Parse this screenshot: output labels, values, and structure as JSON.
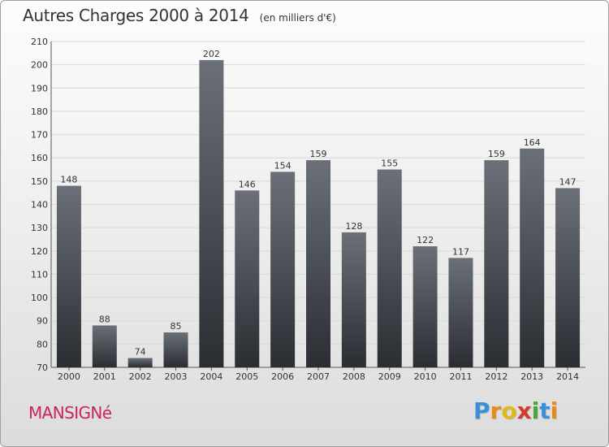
{
  "header": {
    "title": "Autres Charges 2000 à 2014",
    "subtitle": "(en milliers d'€)"
  },
  "footer": {
    "commune": "MANSIGNé",
    "brand": "Proxiti",
    "brand_letters": [
      {
        "ch": "P",
        "color": "#3a8fd6"
      },
      {
        "ch": "r",
        "color": "#e88a1a"
      },
      {
        "ch": "o",
        "color": "#e0b81a"
      },
      {
        "ch": "x",
        "color": "#d23a2a"
      },
      {
        "ch": "i",
        "color": "#4aa63a"
      },
      {
        "ch": "t",
        "color": "#3a8fd6"
      },
      {
        "ch": "i",
        "color": "#e88a1a"
      }
    ]
  },
  "colors": {
    "bar_top": "#6b7078",
    "bar_bottom": "#2a2e33",
    "grid": "#d8d8d8",
    "commune": "#c8265a"
  },
  "chart_data": {
    "type": "bar",
    "title": "Autres Charges 2000 à 2014",
    "subtitle": "(en milliers d'€)",
    "xlabel": "",
    "ylabel": "",
    "categories": [
      "2000",
      "2001",
      "2002",
      "2003",
      "2004",
      "2005",
      "2006",
      "2007",
      "2008",
      "2009",
      "2010",
      "2011",
      "2012",
      "2013",
      "2014"
    ],
    "values": [
      148,
      88,
      74,
      85,
      202,
      146,
      154,
      159,
      128,
      155,
      122,
      117,
      159,
      164,
      147
    ],
    "ylim": [
      70,
      210
    ],
    "yticks": [
      70,
      80,
      90,
      100,
      110,
      120,
      130,
      140,
      150,
      160,
      170,
      180,
      190,
      200,
      210
    ],
    "grid": true,
    "data_labels": true
  }
}
